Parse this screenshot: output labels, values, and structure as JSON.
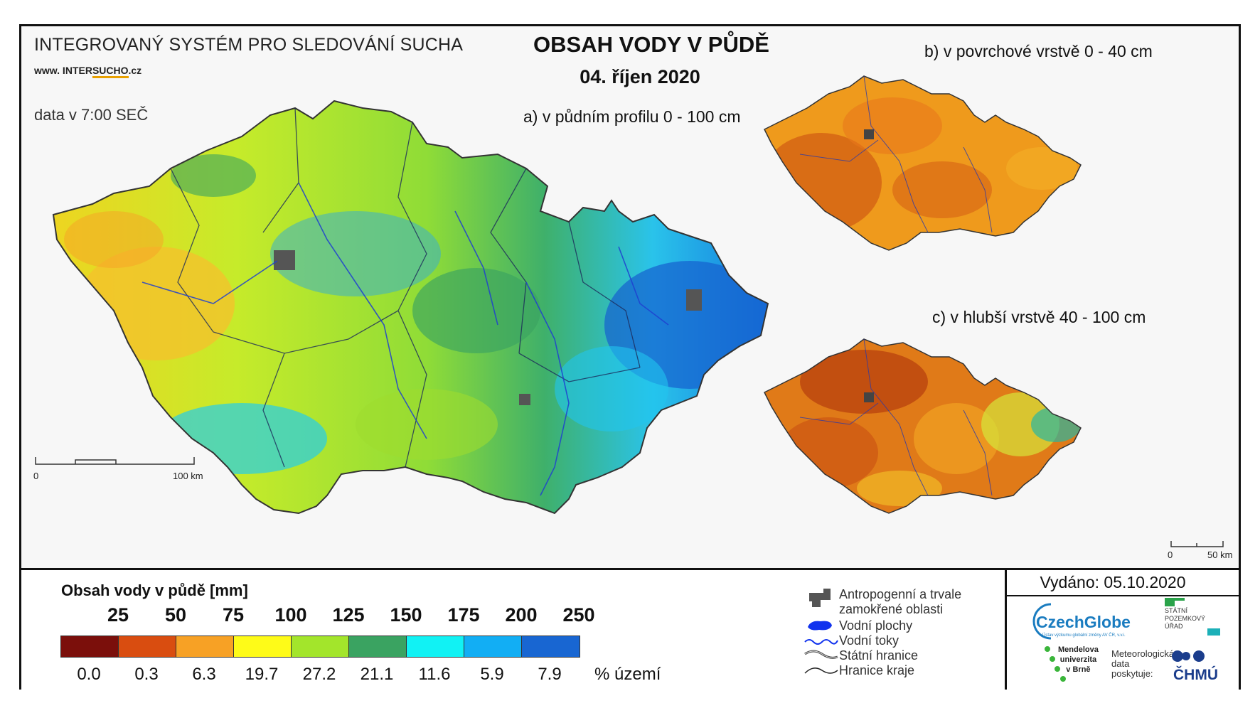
{
  "header": {
    "system_title": "INTEGROVANÝ SYSTÉM PRO SLEDOVÁNÍ SUCHA",
    "website_prefix": "www. INTER",
    "website_highlight": "SUCHO",
    "website_suffix": ".cz",
    "data_time": "data v 7:00 SEČ",
    "main_title": "OBSAH VODY V PŮDĚ",
    "main_date": "04. říjen 2020"
  },
  "maps": {
    "a_title": "a) v půdním profilu 0 - 100 cm",
    "b_title": "b) v povrchové vrstvě 0 - 40 cm",
    "c_title": "c) v hlubší vrstvě 40 - 100 cm"
  },
  "scales": {
    "main_zero": "0",
    "main_end": "100 km",
    "small_zero": "0",
    "small_end": "50 km"
  },
  "legend": {
    "title": "Obsah vody v půdě  [mm]",
    "thresholds": [
      "25",
      "50",
      "75",
      "100",
      "125",
      "150",
      "175",
      "200",
      "250"
    ],
    "classes": [
      {
        "color": "#7b0f0b",
        "percent": "0.0"
      },
      {
        "color": "#d94d10",
        "percent": "0.3"
      },
      {
        "color": "#f7a125",
        "percent": "6.3"
      },
      {
        "color": "#fefb18",
        "percent": "19.7"
      },
      {
        "color": "#a3e52b",
        "percent": "27.2"
      },
      {
        "color": "#3aa361",
        "percent": "21.1"
      },
      {
        "color": "#11f2f4",
        "percent": "11.6"
      },
      {
        "color": "#12aef4",
        "percent": "5.9"
      },
      {
        "color": "#1866d2",
        "percent": "7.9"
      }
    ],
    "unit": "% území"
  },
  "symbols": {
    "anthropogenic_1": "Antropogenní a trvale",
    "anthropogenic_2": "zamokřené oblasti",
    "water_bodies": "Vodní plochy",
    "water_courses": "Vodní toky",
    "state_border": "Státní hranice",
    "region_border": "Hranice kraje"
  },
  "footer": {
    "issued": "Vydáno: 05.10.2020",
    "czechglobe": "CzechGlobe",
    "czechglobe_sub": "Ústav výzkumu globální změny AV ČR, v.v.i.",
    "spu": [
      "STÁTNÍ",
      "POZEMKOVÝ",
      "ÚŘAD"
    ],
    "mendel": [
      "Mendelova",
      "univerzita",
      "v Brně"
    ],
    "meteo": [
      "Meteorologická",
      "data",
      "poskytuje:"
    ],
    "chmu": "ČHMÚ"
  }
}
